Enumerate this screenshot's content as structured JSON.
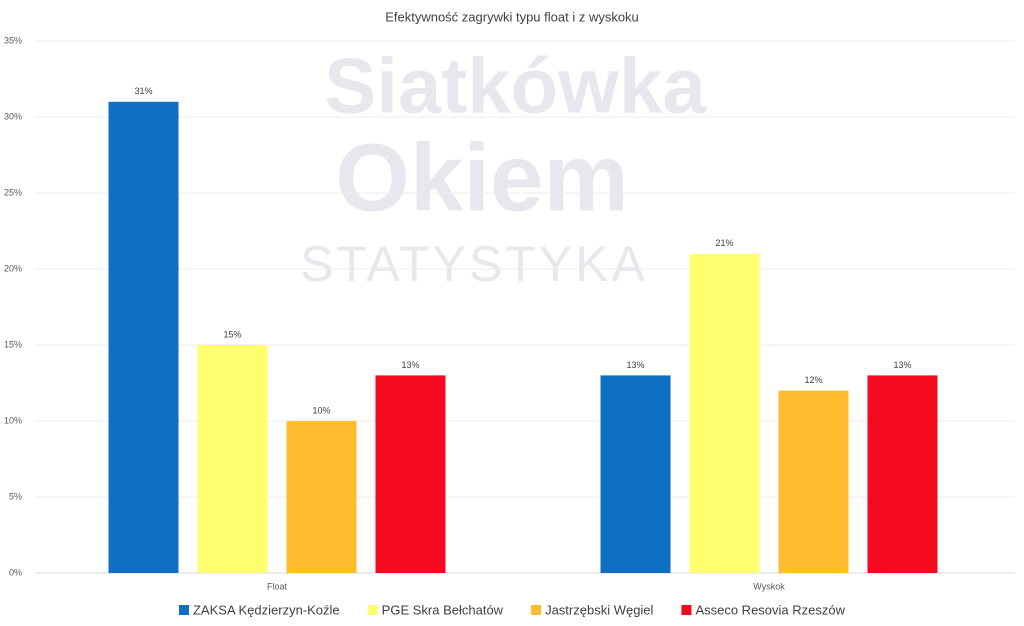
{
  "chart_data": {
    "type": "bar",
    "title": "Efektywność zagrywki typu float i z wyskoku",
    "watermark": [
      "Siatkówka",
      "Okiem",
      "STATYSTYKA"
    ],
    "categories": [
      "Float",
      "Wyskok"
    ],
    "series": [
      {
        "name": "ZAKSA Kędzierzyn-Koźle",
        "color": "#0f6fc0",
        "values": [
          31,
          13
        ],
        "value_labels": [
          "31%",
          "13%"
        ]
      },
      {
        "name": "PGE Skra Bełchatów",
        "color": "#ffff70",
        "values": [
          15,
          21
        ],
        "value_labels": [
          "15%",
          "21%"
        ]
      },
      {
        "name": "Jastrzębski Węgiel",
        "color": "#fdbd2e",
        "values": [
          10,
          12
        ],
        "value_labels": [
          "10%",
          "12%"
        ]
      },
      {
        "name": "Asseco Resovia Rzeszów",
        "color": "#f40a1e",
        "values": [
          13,
          13
        ],
        "value_labels": [
          "13%",
          "13%"
        ]
      }
    ],
    "ylim": [
      0,
      35
    ],
    "yticks": [
      {
        "value": 0,
        "label": "0%"
      },
      {
        "value": 5,
        "label": "5%"
      },
      {
        "value": 10,
        "label": "10%"
      },
      {
        "value": 15,
        "label": "15%"
      },
      {
        "value": 20,
        "label": "20%"
      },
      {
        "value": 25,
        "label": "25%"
      },
      {
        "value": 30,
        "label": "30%"
      },
      {
        "value": 35,
        "label": "35%"
      }
    ],
    "grid": true,
    "legend": "bottom"
  }
}
